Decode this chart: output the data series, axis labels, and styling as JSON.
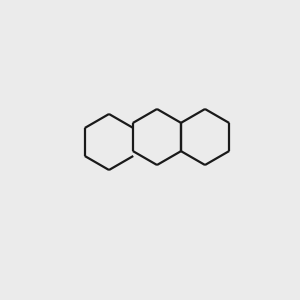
{
  "bg_color": "#ebebeb",
  "bond_color": "#1a1a1a",
  "n_color": "#0000ff",
  "o_color": "#ff0000",
  "s_color": "#cccc00",
  "h_color": "#2080c0",
  "font_size_atom": 9,
  "font_size_small": 7.5,
  "title": "",
  "figsize": [
    3.0,
    3.0
  ],
  "dpi": 100
}
